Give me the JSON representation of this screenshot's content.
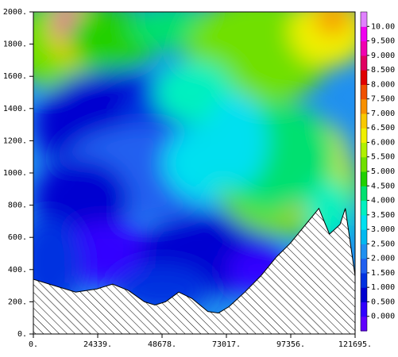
{
  "chart_data": {
    "type": "heatmap",
    "title": "",
    "xlabel": "",
    "ylabel": "",
    "x_ticks": [
      "0.",
      "24339.",
      "48678.",
      "73017.",
      "97356.",
      "121695."
    ],
    "x_tick_values": [
      0,
      24339,
      48678,
      73017,
      97356,
      121695
    ],
    "y_ticks": [
      "0.",
      "200.",
      "400.",
      "600.",
      "800.",
      "1000.",
      "1200.",
      "1400.",
      "1600.",
      "1800.",
      "2000."
    ],
    "y_tick_values": [
      0,
      200,
      400,
      600,
      800,
      1000,
      1200,
      1400,
      1600,
      1800,
      2000
    ],
    "xlim": [
      0,
      121695
    ],
    "ylim": [
      0,
      2000
    ],
    "colorbar": {
      "labels": [
        "0.000",
        "0.500",
        "1.000",
        "1.500",
        "2.000",
        "2.500",
        "3.000",
        "3.500",
        "4.000",
        "4.500",
        "5.000",
        "5.500",
        "6.000",
        "6.500",
        "7.000",
        "7.500",
        "8.000",
        "8.500",
        "9.000",
        "9.500",
        "10.00"
      ],
      "colors": [
        "#6000ff",
        "#3000ff",
        "#0000d0",
        "#0030e0",
        "#2060f0",
        "#2090f0",
        "#00b8f0",
        "#00e0f0",
        "#00f0c0",
        "#00e070",
        "#20d000",
        "#70e000",
        "#b0f000",
        "#f0f000",
        "#f8c800",
        "#f89000",
        "#f05000",
        "#e00000",
        "#e00060",
        "#f000b0",
        "#f000f0",
        "#e080ff"
      ]
    },
    "terrain_profile": [
      {
        "x": 0,
        "y": 340
      },
      {
        "x": 8000,
        "y": 300
      },
      {
        "x": 16000,
        "y": 260
      },
      {
        "x": 24000,
        "y": 280
      },
      {
        "x": 30000,
        "y": 310
      },
      {
        "x": 36000,
        "y": 270
      },
      {
        "x": 42000,
        "y": 200
      },
      {
        "x": 46000,
        "y": 180
      },
      {
        "x": 50000,
        "y": 200
      },
      {
        "x": 55000,
        "y": 260
      },
      {
        "x": 60000,
        "y": 220
      },
      {
        "x": 66000,
        "y": 140
      },
      {
        "x": 70000,
        "y": 130
      },
      {
        "x": 74000,
        "y": 170
      },
      {
        "x": 80000,
        "y": 260
      },
      {
        "x": 86000,
        "y": 360
      },
      {
        "x": 92000,
        "y": 480
      },
      {
        "x": 97000,
        "y": 560
      },
      {
        "x": 103000,
        "y": 680
      },
      {
        "x": 108000,
        "y": 780
      },
      {
        "x": 112000,
        "y": 620
      },
      {
        "x": 116000,
        "y": 680
      },
      {
        "x": 118000,
        "y": 780
      },
      {
        "x": 121695,
        "y": 360
      }
    ]
  }
}
